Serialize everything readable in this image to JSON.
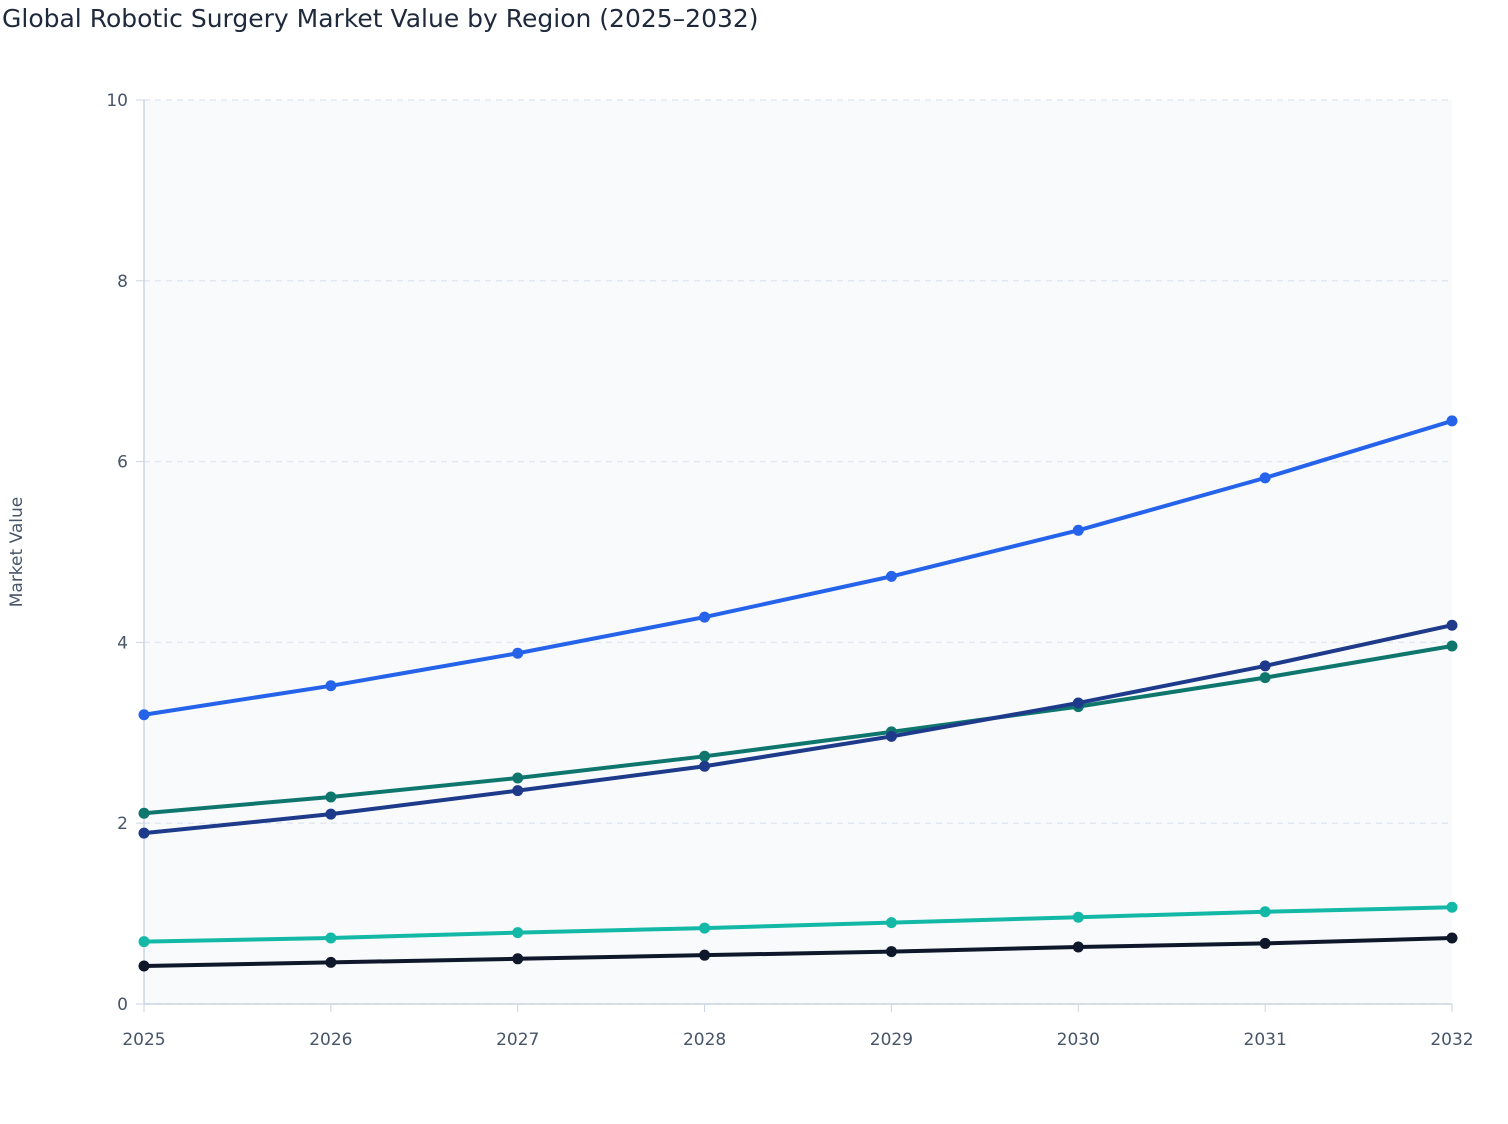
{
  "chart_data": {
    "type": "line",
    "title": "Global Robotic Surgery Market Value by Region (2025–2032)",
    "y_label": "Market Value",
    "x": [
      2025,
      2026,
      2027,
      2028,
      2029,
      2030,
      2031,
      2032
    ],
    "xlim": [
      2025,
      2032
    ],
    "xticks": [
      2025,
      2026,
      2027,
      2028,
      2029,
      2030,
      2031,
      2032
    ],
    "ylim": [
      0,
      10
    ],
    "yticks": [
      0,
      2,
      4,
      6,
      8,
      10
    ],
    "grid": true,
    "series": [
      {
        "color": "#0f172a",
        "values": [
          0.42,
          0.46,
          0.5,
          0.54,
          0.58,
          0.63,
          0.67,
          0.73
        ]
      },
      {
        "color": "#14b8a6",
        "values": [
          0.69,
          0.73,
          0.79,
          0.84,
          0.9,
          0.96,
          1.02,
          1.07
        ]
      },
      {
        "color": "#0f766e",
        "values": [
          2.11,
          2.29,
          2.5,
          2.74,
          3.01,
          3.29,
          3.61,
          3.96
        ]
      },
      {
        "color": "#1e3a8a",
        "values": [
          1.89,
          2.1,
          2.36,
          2.63,
          2.96,
          3.33,
          3.74,
          4.19
        ]
      },
      {
        "color": "#2563eb",
        "values": [
          3.2,
          3.52,
          3.88,
          4.28,
          4.73,
          5.24,
          5.82,
          6.45
        ]
      }
    ]
  }
}
